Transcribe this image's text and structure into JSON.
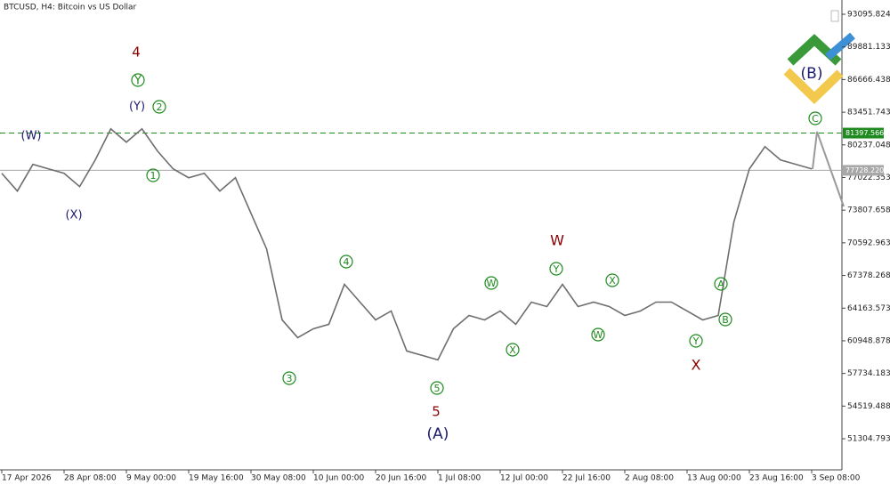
{
  "chart_data": {
    "type": "line",
    "title": "BTCUSD, H4:  Bitcoin vs US Dollar",
    "categories": [
      "17 Apr 2026",
      null,
      null,
      null,
      "28 Apr 08:00",
      null,
      null,
      null,
      "9 May 00:00",
      null,
      null,
      null,
      "19 May 16:00",
      null,
      null,
      null,
      "30 May 08:00",
      null,
      null,
      null,
      "10 Jun 00:00",
      null,
      null,
      null,
      "20 Jun 16:00",
      null,
      null,
      null,
      "1 Jul 08:00",
      null,
      null,
      null,
      "12 Jul 00:00",
      null,
      null,
      null,
      "22 Jul 16:00",
      null,
      null,
      null,
      "2 Aug 08:00",
      null,
      null,
      null,
      "13 Aug 00:00",
      null,
      null,
      null,
      "23 Aug 16:00",
      null,
      null,
      null,
      "3 Sep 08:00"
    ],
    "series": [
      {
        "name": "BTCUSD",
        "color": "#6e6e6e",
        "values": [
          77439,
          75689,
          78314,
          77876,
          77439,
          76127,
          78751,
          81812,
          80500,
          81812,
          79626,
          77876,
          77002,
          77439,
          75689,
          77002,
          73503,
          70004,
          63006,
          61257,
          62132,
          62569,
          66505,
          64756,
          63006,
          63881,
          59945,
          59508,
          59070,
          62132,
          63444,
          63006,
          63881,
          62569,
          64756,
          64318,
          66505,
          64318,
          64756,
          64318,
          63444,
          63881,
          64756,
          64756,
          63881,
          63006,
          63444,
          72628,
          77876,
          80063,
          78751,
          78314,
          77876
        ]
      }
    ],
    "ylim": [
      48240,
      94500
    ],
    "yticks": [
      93095.824,
      89881.133,
      86666.438,
      83451.743,
      80237.048,
      77022.353,
      73807.658,
      70592.963,
      67378.268,
      64163.573,
      60948.878,
      57734.183,
      54519.488,
      51304.793
    ],
    "levels": [
      81397.566,
      {
        "value": 77728.22,
        "label": "77728.220"
      }
    ],
    "level_colors": [
      "#1f8a1f",
      "#a8a8a8"
    ],
    "annotations": [
      "4",
      "Y",
      "(Y)",
      "2",
      "(W)",
      "1",
      "(X)",
      "4",
      "3",
      "5",
      "5",
      "(A)",
      "W",
      "Y",
      "W",
      "X",
      "X",
      "W",
      "A",
      "B",
      "Y",
      "X",
      "(B)",
      "C"
    ]
  }
}
